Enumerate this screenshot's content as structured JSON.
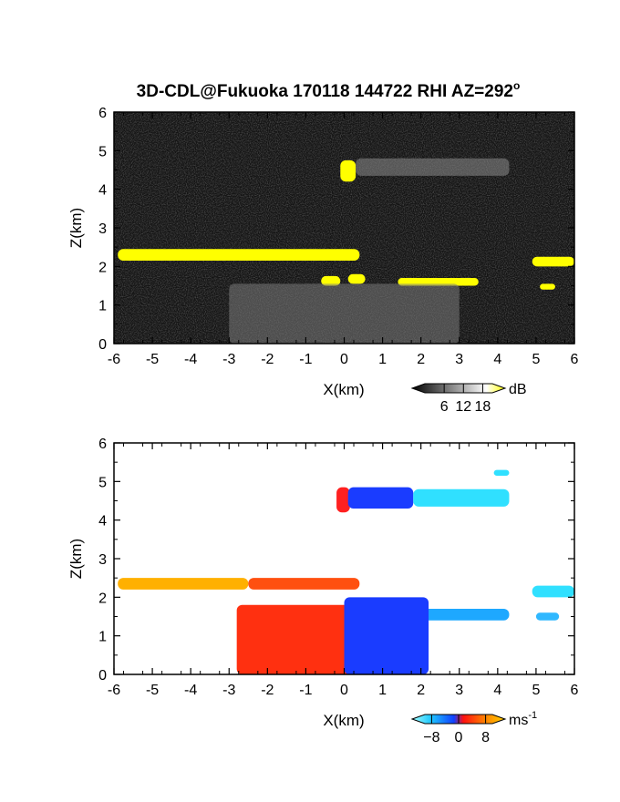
{
  "title": "3D-CDL@Fukuoka 170118 144722 RHI AZ=292",
  "title_degree_symbol": "o",
  "chart_data": [
    {
      "type": "heatmap",
      "quantity": "reflectivity",
      "xlabel": "X(km)",
      "ylabel": "Z(km)",
      "xlim": [
        -6,
        6
      ],
      "ylim": [
        0,
        6
      ],
      "x_ticks": [
        "-6",
        "-5",
        "-4",
        "-3",
        "-2",
        "-1",
        "0",
        "1",
        "2",
        "3",
        "4",
        "5",
        "6"
      ],
      "y_ticks": [
        "0",
        "1",
        "2",
        "3",
        "4",
        "5",
        "6"
      ],
      "background_color": "#141414",
      "features": [
        {
          "name": "upper echo head",
          "x_range": [
            -0.1,
            0.3
          ],
          "z_range": [
            4.2,
            4.75
          ],
          "level": "high",
          "color": "#ffff00"
        },
        {
          "name": "upper echo tail",
          "x_range": [
            0.3,
            4.3
          ],
          "z_range": [
            4.35,
            4.8
          ],
          "level": "low",
          "color": "#8a8a8a"
        },
        {
          "name": "left layer",
          "x_range": [
            -5.9,
            0.4
          ],
          "z_range": [
            2.15,
            2.45
          ],
          "level": "high",
          "color": "#ffff00"
        },
        {
          "name": "right layer",
          "x_range": [
            4.9,
            6.0
          ],
          "z_range": [
            2.0,
            2.25
          ],
          "level": "high",
          "color": "#ffff00"
        },
        {
          "name": "lower echo A",
          "x_range": [
            -0.6,
            -0.1
          ],
          "z_range": [
            1.5,
            1.75
          ],
          "level": "high",
          "color": "#ffff00"
        },
        {
          "name": "lower echo B",
          "x_range": [
            0.1,
            0.55
          ],
          "z_range": [
            1.55,
            1.8
          ],
          "level": "high",
          "color": "#ffff00"
        },
        {
          "name": "lower echo C",
          "x_range": [
            1.4,
            3.5
          ],
          "z_range": [
            1.5,
            1.7
          ],
          "level": "high",
          "color": "#ffff00"
        },
        {
          "name": "lower echo D",
          "x_range": [
            5.1,
            5.5
          ],
          "z_range": [
            1.4,
            1.55
          ],
          "level": "high",
          "color": "#ffff00"
        },
        {
          "name": "near-field clutter",
          "x_range": [
            -3.0,
            3.0
          ],
          "z_range": [
            0,
            1.55
          ],
          "level": "mid",
          "color": "#7a7a7a"
        }
      ],
      "colorbar": {
        "unit": "dB",
        "ticks": [
          "6",
          "12",
          "18"
        ],
        "range": [
          0,
          21
        ],
        "colors": [
          "#000000",
          "#ffffff",
          "#ffff00"
        ]
      }
    },
    {
      "type": "heatmap",
      "quantity": "Doppler velocity",
      "xlabel": "X(km)",
      "ylabel": "Z(km)",
      "xlim": [
        -6,
        6
      ],
      "ylim": [
        0,
        6
      ],
      "x_ticks": [
        "-6",
        "-5",
        "-4",
        "-3",
        "-2",
        "-1",
        "0",
        "1",
        "2",
        "3",
        "4",
        "5",
        "6"
      ],
      "y_ticks": [
        "0",
        "1",
        "2",
        "3",
        "4",
        "5",
        "6"
      ],
      "background_color": "#ffffff",
      "features": [
        {
          "name": "upper echo front",
          "x_range": [
            -0.2,
            0.15
          ],
          "z_range": [
            4.2,
            4.85
          ],
          "velocity": -1,
          "color": "#ff2020"
        },
        {
          "name": "upper echo body",
          "x_range": [
            0.1,
            1.8
          ],
          "z_range": [
            4.3,
            4.85
          ],
          "velocity": -7,
          "color": "#1a3cff"
        },
        {
          "name": "upper echo tail",
          "x_range": [
            1.8,
            4.3
          ],
          "z_range": [
            4.35,
            4.8
          ],
          "velocity": -8.5,
          "color": "#30e0ff"
        },
        {
          "name": "upper echo fragment",
          "x_range": [
            3.9,
            4.3
          ],
          "z_range": [
            5.15,
            5.3
          ],
          "velocity": -8.5,
          "color": "#30e0ff"
        },
        {
          "name": "left layer",
          "x_range": [
            -5.9,
            -2.5
          ],
          "z_range": [
            2.2,
            2.5
          ],
          "velocity": 6,
          "color": "#ffb000"
        },
        {
          "name": "left layer inner",
          "x_range": [
            -2.5,
            0.4
          ],
          "z_range": [
            2.2,
            2.5
          ],
          "velocity": 3,
          "color": "#ff5010"
        },
        {
          "name": "right layer",
          "x_range": [
            4.9,
            6.0
          ],
          "z_range": [
            2.0,
            2.3
          ],
          "velocity": -8.5,
          "color": "#30e0ff"
        },
        {
          "name": "right patch",
          "x_range": [
            5.0,
            5.6
          ],
          "z_range": [
            1.4,
            1.6
          ],
          "velocity": -8,
          "color": "#30b8ff"
        },
        {
          "name": "lower layer",
          "x_range": [
            1.2,
            4.3
          ],
          "z_range": [
            1.4,
            1.7
          ],
          "velocity": -6.5,
          "color": "#1ea8ff"
        },
        {
          "name": "convective core positive",
          "x_range": [
            -2.8,
            0.2
          ],
          "z_range": [
            0,
            1.8
          ],
          "velocity": 3,
          "color": "#ff3010"
        },
        {
          "name": "convective core negative",
          "x_range": [
            0.0,
            2.2
          ],
          "z_range": [
            0,
            2.0
          ],
          "velocity": -7,
          "color": "#1a3cff"
        }
      ],
      "colorbar": {
        "unit": "ms",
        "unit_superscript": "-1",
        "ticks": [
          "-8",
          "0",
          "8"
        ],
        "range": [
          -10,
          10
        ],
        "colors": [
          "#a0ffff",
          "#20c8ff",
          "#1040ff",
          "#ff1010",
          "#ff8000",
          "#ffd000"
        ]
      }
    }
  ]
}
